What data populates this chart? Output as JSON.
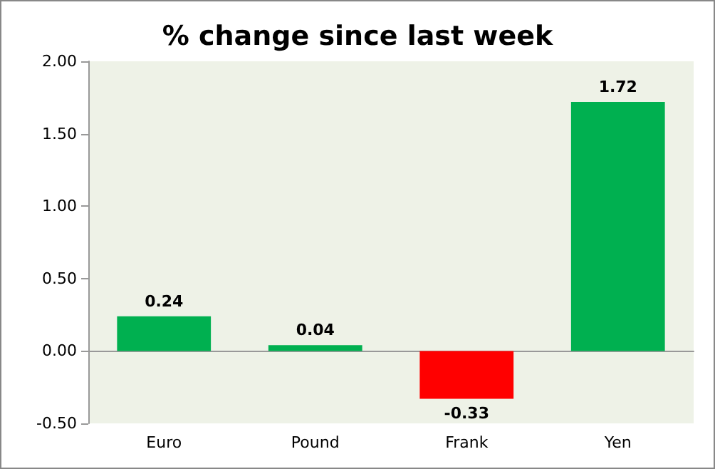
{
  "chart_data": {
    "type": "bar",
    "title": "% change since last week",
    "categories": [
      "Euro",
      "Pound",
      "Frank",
      "Yen"
    ],
    "values": [
      0.24,
      0.04,
      -0.33,
      1.72
    ],
    "colors": [
      "#00b050",
      "#00b050",
      "#ff0000",
      "#00b050"
    ],
    "ylim": [
      -0.5,
      2
    ],
    "yticks": [
      {
        "value": -0.5,
        "label": "-0.50"
      },
      {
        "value": 0,
        "label": "0.00"
      },
      {
        "value": 0.5,
        "label": "0.50"
      },
      {
        "value": 1,
        "label": "1.00"
      },
      {
        "value": 1.5,
        "label": "1.50"
      },
      {
        "value": 2,
        "label": "2.00"
      }
    ],
    "data_labels": true
  }
}
